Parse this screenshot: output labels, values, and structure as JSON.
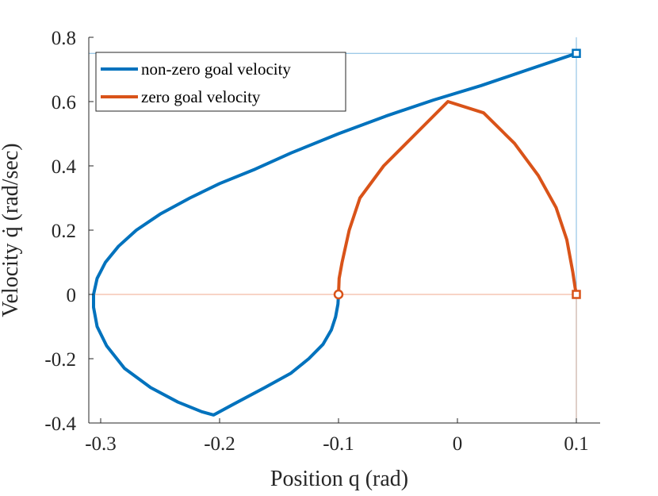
{
  "chart_data": {
    "type": "line",
    "title": "",
    "xlabel": "Position q (rad)",
    "ylabel": "Velocity q̇ (rad/sec)",
    "xlim": [
      -0.31,
      0.12
    ],
    "ylim": [
      -0.4,
      0.8
    ],
    "grid": false,
    "legend_position": "top-left",
    "xticks": [
      {
        "value": -0.3,
        "label": "-0.3"
      },
      {
        "value": -0.2,
        "label": "-0.2"
      },
      {
        "value": -0.1,
        "label": "-0.1"
      },
      {
        "value": 0,
        "label": "0"
      },
      {
        "value": 0.1,
        "label": "0.1"
      }
    ],
    "yticks": [
      {
        "value": -0.4,
        "label": "-0.4"
      },
      {
        "value": -0.2,
        "label": "-0.2"
      },
      {
        "value": 0,
        "label": "0"
      },
      {
        "value": 0.2,
        "label": "0.2"
      },
      {
        "value": 0.4,
        "label": "0.4"
      },
      {
        "value": 0.6,
        "label": "0.6"
      },
      {
        "value": 0.8,
        "label": "0.8"
      }
    ],
    "series": [
      {
        "name": "non-zero goal velocity",
        "color": "#0072BD",
        "x": [
          -0.1,
          -0.1005,
          -0.1025,
          -0.106,
          -0.113,
          -0.125,
          -0.14,
          -0.162,
          -0.19,
          -0.205,
          -0.215,
          -0.235,
          -0.258,
          -0.28,
          -0.295,
          -0.303,
          -0.306,
          -0.306,
          -0.303,
          -0.296,
          -0.285,
          -0.27,
          -0.25,
          -0.225,
          -0.2,
          -0.17,
          -0.14,
          -0.1,
          -0.06,
          -0.02,
          0.02,
          0.06,
          0.1
        ],
        "y": [
          0.0,
          -0.03,
          -0.07,
          -0.11,
          -0.155,
          -0.2,
          -0.245,
          -0.29,
          -0.345,
          -0.375,
          -0.365,
          -0.335,
          -0.29,
          -0.23,
          -0.16,
          -0.1,
          -0.04,
          0.0,
          0.05,
          0.1,
          0.15,
          0.2,
          0.25,
          0.3,
          0.345,
          0.39,
          0.44,
          0.5,
          0.555,
          0.605,
          0.65,
          0.7,
          0.75
        ]
      },
      {
        "name": "zero goal velocity",
        "color": "#D95319",
        "x": [
          -0.1,
          -0.0995,
          -0.097,
          -0.091,
          -0.082,
          -0.062,
          -0.035,
          -0.008,
          0.022,
          0.048,
          0.068,
          0.083,
          0.092,
          0.097,
          0.099,
          0.1
        ],
        "y": [
          0.0,
          0.05,
          0.1,
          0.2,
          0.3,
          0.4,
          0.5,
          0.6,
          0.565,
          0.47,
          0.37,
          0.27,
          0.17,
          0.07,
          0.02,
          0.0
        ]
      }
    ],
    "markers": [
      {
        "name": "non-zero-goal-marker",
        "shape": "square",
        "x": 0.1,
        "y": 0.75,
        "color": "#0072BD"
      },
      {
        "name": "zero-goal-marker",
        "shape": "square",
        "x": 0.1,
        "y": 0.0,
        "color": "#D95319"
      },
      {
        "name": "start-marker",
        "shape": "circle",
        "x": -0.1,
        "y": 0.0,
        "color": "#D95319"
      }
    ],
    "reference_lines": [
      {
        "name": "goal-velocity-line",
        "orientation": "horizontal",
        "value": 0.75,
        "color": "#7FB8E0",
        "from": -0.31,
        "to": 0.1
      },
      {
        "name": "goal-position-line-upper",
        "orientation": "vertical",
        "value": 0.1,
        "color": "#7FB8E0",
        "from": 0.0,
        "to": 0.8
      },
      {
        "name": "zero-velocity-line",
        "orientation": "horizontal",
        "value": 0.0,
        "color": "#F2A98C",
        "from": -0.31,
        "to": 0.1
      },
      {
        "name": "goal-position-line-lower",
        "orientation": "vertical",
        "value": 0.1,
        "color": "#BF9F90",
        "from": -0.4,
        "to": 0.0
      }
    ]
  }
}
